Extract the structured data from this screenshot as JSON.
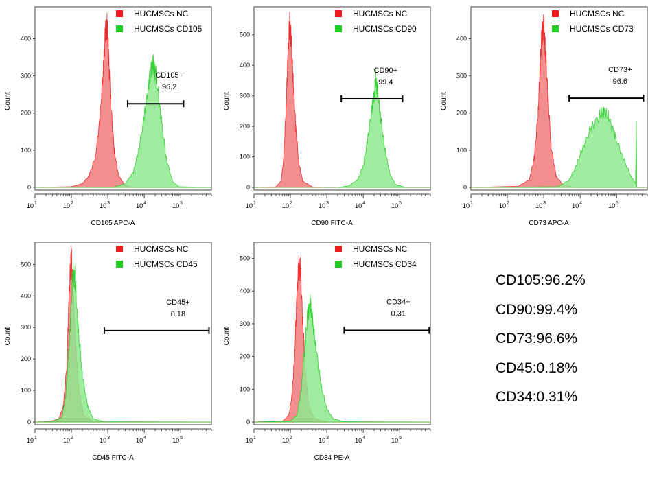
{
  "chart_data": [
    {
      "type": "area",
      "xlabel": "CD105 APC-A",
      "ylabel": "Count",
      "xscale": "log",
      "xlim": [
        10,
        700000
      ],
      "ylim": [
        0,
        460
      ],
      "xticks": [
        "1",
        "2",
        "3",
        "4",
        "5"
      ],
      "yticks": [
        0,
        100,
        200,
        300,
        400
      ],
      "legend": "top",
      "gate": {
        "label": "CD105+",
        "value": "96.2",
        "x_range": [
          3500,
          120000
        ],
        "y": 225
      },
      "series": [
        {
          "name": "HUCMSCs NC",
          "color": "#ee1c1c",
          "points": [
            [
              10,
              0
            ],
            [
              100,
              2
            ],
            [
              200,
              10
            ],
            [
              300,
              30
            ],
            [
              450,
              80
            ],
            [
              600,
              180
            ],
            [
              750,
              320
            ],
            [
              850,
              410
            ],
            [
              950,
              440
            ],
            [
              1050,
              360
            ],
            [
              1200,
              230
            ],
            [
              1500,
              100
            ],
            [
              2000,
              30
            ],
            [
              3000,
              5
            ],
            [
              5000,
              0
            ],
            [
              700000,
              0
            ]
          ]
        },
        {
          "name": "HUCMSCs CD105",
          "color": "#22cc22",
          "points": [
            [
              10,
              0
            ],
            [
              1500,
              1
            ],
            [
              3000,
              10
            ],
            [
              5000,
              40
            ],
            [
              7000,
              100
            ],
            [
              10000,
              190
            ],
            [
              13000,
              270
            ],
            [
              16000,
              325
            ],
            [
              18000,
              330
            ],
            [
              21000,
              300
            ],
            [
              28000,
              200
            ],
            [
              40000,
              80
            ],
            [
              60000,
              15
            ],
            [
              90000,
              2
            ],
            [
              700000,
              0
            ]
          ]
        }
      ]
    },
    {
      "type": "area",
      "xlabel": "CD90 FITC-A",
      "ylabel": "Count",
      "xscale": "log",
      "xlim": [
        10,
        700000
      ],
      "ylim": [
        0,
        560
      ],
      "xticks": [
        "1",
        "2",
        "3",
        "4",
        "5"
      ],
      "yticks": [
        0,
        100,
        200,
        300,
        400,
        500
      ],
      "legend": "top",
      "gate": {
        "label": "CD90+",
        "value": "99.4",
        "x_range": [
          2500,
          120000
        ],
        "y": 290
      },
      "series": [
        {
          "name": "HUCMSCs NC",
          "color": "#ee1c1c",
          "points": [
            [
              10,
              0
            ],
            [
              40,
              2
            ],
            [
              55,
              20
            ],
            [
              65,
              90
            ],
            [
              75,
              250
            ],
            [
              85,
              420
            ],
            [
              95,
              540
            ],
            [
              105,
              480
            ],
            [
              120,
              350
            ],
            [
              140,
              200
            ],
            [
              170,
              80
            ],
            [
              220,
              20
            ],
            [
              400,
              2
            ],
            [
              1000,
              0
            ],
            [
              700000,
              0
            ]
          ]
        },
        {
          "name": "HUCMSCs CD90",
          "color": "#22cc22",
          "points": [
            [
              10,
              0
            ],
            [
              2000,
              0
            ],
            [
              4000,
              5
            ],
            [
              7000,
              25
            ],
            [
              10000,
              70
            ],
            [
              13000,
              150
            ],
            [
              17000,
              250
            ],
            [
              20000,
              300
            ],
            [
              22000,
              355
            ],
            [
              25000,
              310
            ],
            [
              30000,
              230
            ],
            [
              40000,
              120
            ],
            [
              55000,
              40
            ],
            [
              80000,
              8
            ],
            [
              150000,
              0
            ],
            [
              700000,
              0
            ]
          ]
        }
      ]
    },
    {
      "type": "area",
      "xlabel": "CD73 APC-A",
      "ylabel": "Count",
      "xscale": "log",
      "xlim": [
        10,
        700000
      ],
      "ylim": [
        0,
        460
      ],
      "xticks": [
        "1",
        "2",
        "3",
        "4",
        "5"
      ],
      "yticks": [
        0,
        100,
        200,
        300,
        400
      ],
      "legend": "top",
      "gate": {
        "label": "CD73+",
        "value": "96.6",
        "x_range": [
          5000,
          550000
        ],
        "y": 240
      },
      "series": [
        {
          "name": "HUCMSCs NC",
          "color": "#ee1c1c",
          "points": [
            [
              10,
              0
            ],
            [
              200,
              3
            ],
            [
              400,
              20
            ],
            [
              550,
              80
            ],
            [
              700,
              200
            ],
            [
              800,
              330
            ],
            [
              900,
              420
            ],
            [
              1000,
              430
            ],
            [
              1100,
              380
            ],
            [
              1300,
              250
            ],
            [
              1600,
              110
            ],
            [
              2200,
              30
            ],
            [
              3500,
              5
            ],
            [
              8000,
              0
            ],
            [
              700000,
              0
            ]
          ]
        },
        {
          "name": "HUCMSCs CD73",
          "color": "#22cc22",
          "points": [
            [
              10,
              0
            ],
            [
              2500,
              2
            ],
            [
              5000,
              20
            ],
            [
              8000,
              60
            ],
            [
              12000,
              110
            ],
            [
              20000,
              160
            ],
            [
              35000,
              195
            ],
            [
              45000,
              205
            ],
            [
              60000,
              190
            ],
            [
              90000,
              140
            ],
            [
              150000,
              80
            ],
            [
              250000,
              30
            ],
            [
              330000,
              10
            ],
            [
              350000,
              170
            ],
            [
              360000,
              0
            ],
            [
              700000,
              0
            ]
          ]
        }
      ]
    },
    {
      "type": "area",
      "xlabel": "CD45 FITC-A",
      "ylabel": "Count",
      "xscale": "log",
      "xlim": [
        10,
        700000
      ],
      "ylim": [
        0,
        540
      ],
      "xticks": [
        "1",
        "2",
        "3",
        "4",
        "5"
      ],
      "yticks": [
        0,
        100,
        200,
        300,
        400,
        500
      ],
      "legend": "top",
      "gate": {
        "label": "CD45+",
        "value": "0.18",
        "x_range": [
          800,
          600000
        ],
        "y": 290
      },
      "series": [
        {
          "name": "HUCMSCs NC",
          "color": "#ee1c1c",
          "points": [
            [
              10,
              0
            ],
            [
              25,
              1
            ],
            [
              45,
              10
            ],
            [
              60,
              50
            ],
            [
              75,
              180
            ],
            [
              85,
              380
            ],
            [
              95,
              500
            ],
            [
              100,
              520
            ],
            [
              110,
              430
            ],
            [
              130,
              250
            ],
            [
              160,
              100
            ],
            [
              220,
              20
            ],
            [
              400,
              3
            ],
            [
              1000,
              0
            ],
            [
              700000,
              0
            ]
          ]
        },
        {
          "name": "HUCMSCs CD45",
          "color": "#22cc22",
          "points": [
            [
              10,
              0
            ],
            [
              30,
              1
            ],
            [
              55,
              15
            ],
            [
              70,
              80
            ],
            [
              90,
              280
            ],
            [
              110,
              470
            ],
            [
              125,
              460
            ],
            [
              150,
              310
            ],
            [
              200,
              150
            ],
            [
              280,
              50
            ],
            [
              400,
              10
            ],
            [
              800,
              1
            ],
            [
              700000,
              0
            ]
          ]
        }
      ]
    },
    {
      "type": "area",
      "xlabel": "CD34 PE-A",
      "ylabel": "Count",
      "xscale": "log",
      "xlim": [
        10,
        700000
      ],
      "ylim": [
        0,
        520
      ],
      "xticks": [
        "1",
        "2",
        "3",
        "4",
        "5"
      ],
      "yticks": [
        0,
        100,
        200,
        300,
        400,
        500
      ],
      "legend": "top",
      "gate": {
        "label": "CD34+",
        "value": "0.31",
        "x_range": [
          3000,
          650000
        ],
        "y": 280
      },
      "series": [
        {
          "name": "HUCMSCs NC",
          "color": "#ee1c1c",
          "points": [
            [
              10,
              0
            ],
            [
              60,
              2
            ],
            [
              90,
              20
            ],
            [
              110,
              80
            ],
            [
              130,
              200
            ],
            [
              150,
              380
            ],
            [
              170,
              480
            ],
            [
              190,
              460
            ],
            [
              220,
              300
            ],
            [
              260,
              150
            ],
            [
              320,
              50
            ],
            [
              450,
              10
            ],
            [
              1000,
              0
            ],
            [
              700000,
              0
            ]
          ]
        },
        {
          "name": "HUCMSCs CD34",
          "color": "#22cc22",
          "points": [
            [
              10,
              0
            ],
            [
              100,
              3
            ],
            [
              150,
              20
            ],
            [
              200,
              100
            ],
            [
              250,
              240
            ],
            [
              300,
              330
            ],
            [
              350,
              360
            ],
            [
              400,
              320
            ],
            [
              500,
              230
            ],
            [
              700,
              110
            ],
            [
              1000,
              40
            ],
            [
              1500,
              10
            ],
            [
              3000,
              1
            ],
            [
              700000,
              0
            ]
          ]
        }
      ]
    }
  ],
  "summary": [
    "CD105:96.2%",
    "CD90:99.4%",
    "CD73:96.6%",
    "CD45:0.18%",
    "CD34:0.31%"
  ]
}
